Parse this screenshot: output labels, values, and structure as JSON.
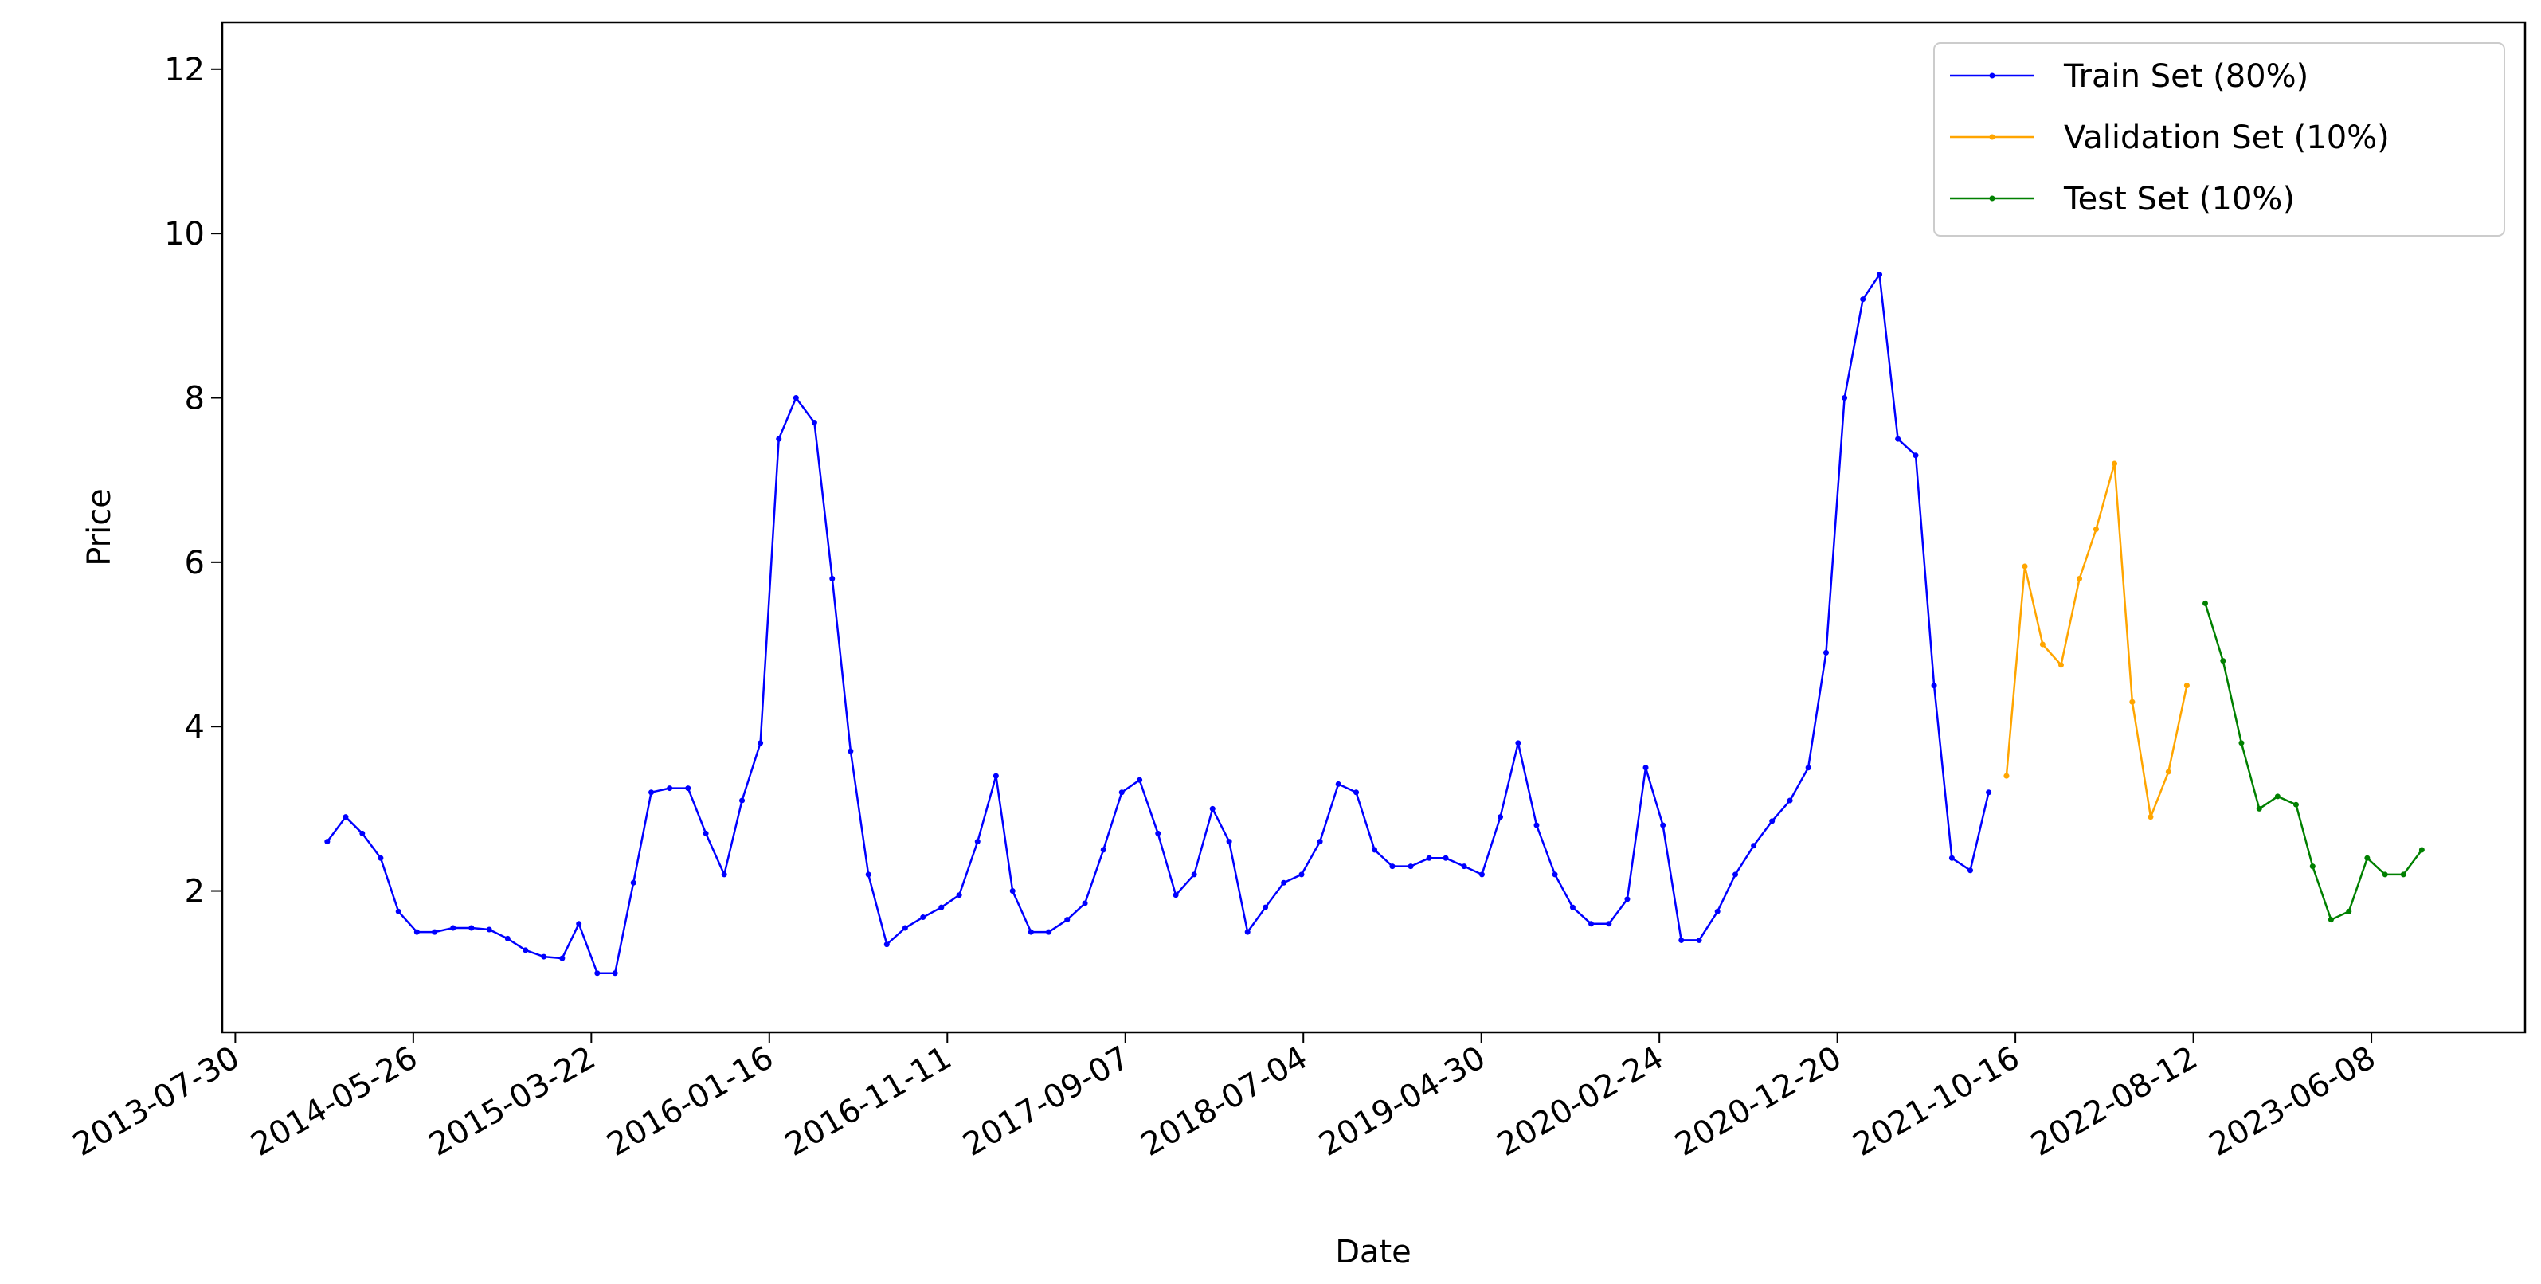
{
  "chart_data": {
    "type": "line",
    "x_label": "Date",
    "y_label": "Price",
    "xlim": [
      "2013-07-08",
      "2024-02-22"
    ],
    "xticks": [
      "2013-07-30",
      "2014-05-26",
      "2015-03-22",
      "2016-01-16",
      "2016-11-11",
      "2017-09-07",
      "2018-07-04",
      "2019-04-30",
      "2020-02-24",
      "2020-12-20",
      "2021-10-16",
      "2022-08-12",
      "2023-06-08"
    ],
    "ylim": [
      0.28,
      12.57
    ],
    "yticks": [
      2,
      4,
      6,
      8,
      10,
      12
    ],
    "legend": "upper right",
    "series": [
      {
        "name": "Train Set (80%)",
        "color": "#0000ff",
        "x": [
          "2014-01-01",
          "2014-02-01",
          "2014-03-01",
          "2014-04-01",
          "2014-05-01",
          "2014-06-01",
          "2014-07-01",
          "2014-08-01",
          "2014-09-01",
          "2014-10-01",
          "2014-11-01",
          "2014-12-01",
          "2015-01-01",
          "2015-02-01",
          "2015-03-01",
          "2015-04-01",
          "2015-05-01",
          "2015-06-01",
          "2015-07-01",
          "2015-08-01",
          "2015-09-01",
          "2015-10-01",
          "2015-11-01",
          "2015-12-01",
          "2016-01-01",
          "2016-02-01",
          "2016-03-01",
          "2016-04-01",
          "2016-05-01",
          "2016-06-01",
          "2016-07-01",
          "2016-08-01",
          "2016-09-01",
          "2016-10-01",
          "2016-11-01",
          "2016-12-01",
          "2017-01-01",
          "2017-02-01",
          "2017-03-01",
          "2017-04-01",
          "2017-05-01",
          "2017-06-01",
          "2017-07-01",
          "2017-08-01",
          "2017-09-01",
          "2017-10-01",
          "2017-11-01",
          "2017-12-01",
          "2018-01-01",
          "2018-02-01",
          "2018-03-01",
          "2018-04-01",
          "2018-05-01",
          "2018-06-01",
          "2018-07-01",
          "2018-08-01",
          "2018-09-01",
          "2018-10-01",
          "2018-11-01",
          "2018-12-01",
          "2019-01-01",
          "2019-02-01",
          "2019-03-01",
          "2019-04-01",
          "2019-05-01",
          "2019-06-01",
          "2019-07-01",
          "2019-08-01",
          "2019-09-01",
          "2019-10-01",
          "2019-11-01",
          "2019-12-01",
          "2020-01-01",
          "2020-02-01",
          "2020-03-01",
          "2020-04-01",
          "2020-05-01",
          "2020-06-01",
          "2020-07-01",
          "2020-08-01",
          "2020-09-01",
          "2020-10-01",
          "2020-11-01",
          "2020-12-01",
          "2021-01-01",
          "2021-02-01",
          "2021-03-01",
          "2021-04-01",
          "2021-05-01",
          "2021-06-01",
          "2021-07-01",
          "2021-08-01",
          "2021-09-01"
        ],
        "values": [
          2.6,
          2.9,
          2.7,
          2.4,
          1.75,
          1.5,
          1.5,
          1.55,
          1.55,
          1.53,
          1.42,
          1.28,
          1.2,
          1.18,
          1.6,
          1.0,
          1.0,
          2.1,
          3.2,
          3.25,
          3.25,
          2.7,
          2.2,
          3.1,
          3.8,
          7.5,
          8.0,
          7.7,
          5.8,
          3.7,
          2.2,
          1.35,
          1.55,
          1.68,
          1.8,
          1.95,
          2.6,
          3.4,
          2.0,
          1.5,
          1.5,
          1.65,
          1.85,
          2.5,
          3.2,
          3.35,
          2.7,
          1.95,
          2.2,
          3.0,
          2.6,
          1.5,
          1.8,
          2.1,
          2.2,
          2.6,
          3.3,
          3.2,
          2.5,
          2.3,
          2.3,
          2.4,
          2.4,
          2.3,
          2.2,
          2.9,
          3.8,
          2.8,
          2.2,
          1.8,
          1.6,
          1.6,
          1.9,
          3.5,
          2.8,
          1.4,
          1.4,
          1.75,
          2.2,
          2.55,
          2.85,
          3.1,
          3.5,
          4.9,
          8.0,
          9.2,
          9.5,
          7.5,
          7.3,
          4.5,
          2.4,
          2.25,
          3.2
        ]
      },
      {
        "name": "Validation Set (10%)",
        "color": "#ffa500",
        "x": [
          "2021-10-01",
          "2021-11-01",
          "2021-12-01",
          "2022-01-01",
          "2022-02-01",
          "2022-03-01",
          "2022-04-01",
          "2022-05-01",
          "2022-06-01",
          "2022-07-01",
          "2022-08-01"
        ],
        "values": [
          3.4,
          5.95,
          5.0,
          4.75,
          5.8,
          6.4,
          7.2,
          4.3,
          2.9,
          3.45,
          4.5
        ]
      },
      {
        "name": "Test Set (10%)",
        "color": "#008000",
        "x": [
          "2022-09-01",
          "2022-10-01",
          "2022-11-01",
          "2022-12-01",
          "2023-01-01",
          "2023-02-01",
          "2023-03-01",
          "2023-04-01",
          "2023-05-01",
          "2023-06-01",
          "2023-07-01",
          "2023-08-01",
          "2023-09-01"
        ],
        "values": [
          5.5,
          4.8,
          3.8,
          3.0,
          3.15,
          3.05,
          2.3,
          1.65,
          1.75,
          2.4,
          2.2,
          2.2,
          2.5
        ]
      }
    ]
  }
}
